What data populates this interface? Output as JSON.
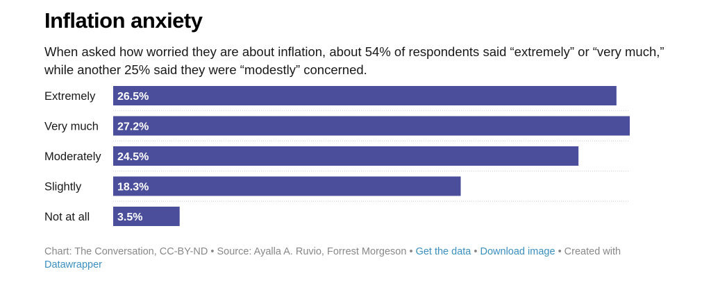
{
  "title": "Inflation anxiety",
  "subtitle": "When asked how worried they are about inflation, about 54% of respondents said “extremely” or “very much,” while another 25% said they were “modestly” concerned.",
  "colors": {
    "bar": "#4b4e9a",
    "bar_label": "#ffffff",
    "separator": "#cccccc"
  },
  "chart_data": {
    "type": "bar",
    "orientation": "horizontal",
    "categories": [
      "Extremely",
      "Very much",
      "Moderately",
      "Slightly",
      "Not at all"
    ],
    "values": [
      26.5,
      27.2,
      24.5,
      18.3,
      3.5
    ],
    "value_labels": [
      "26.5%",
      "27.2%",
      "24.5%",
      "18.3%",
      "3.5%"
    ],
    "unit": "%",
    "title": "Inflation anxiety",
    "xlim": [
      0,
      27.2
    ],
    "grid": false,
    "legend": "none"
  },
  "footer": {
    "credit": "Chart: The Conversation, CC-BY-ND",
    "sep": "•",
    "source": "Source: Ayalla A. Ruvio, Forrest Morgeson",
    "get_data": "Get the data",
    "download": "Download image",
    "created_with": "Created with",
    "tool": "Datawrapper"
  }
}
